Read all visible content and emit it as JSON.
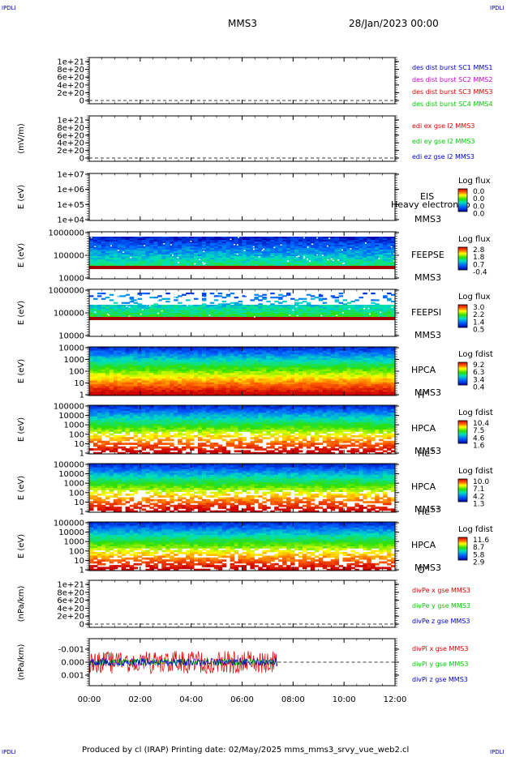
{
  "header": {
    "spacecraft": "MMS3",
    "date": "28/Jan/2023 00:00",
    "corner_labels": [
      "IPDLI",
      "IPDLI",
      "IPDLI",
      "IPDLI"
    ]
  },
  "footer": {
    "text": "Produced by cl (IRAP)   Printing date: 02/May/2025   mms_mms3_srvy_vue_web2.cl"
  },
  "colors": {
    "c1": "#0000cc",
    "c2": "#cc00cc",
    "c3": "#dd0000",
    "c4": "#00cc00",
    "ex": "#dd0000",
    "ey": "#00cc00",
    "ez": "#0000cc"
  },
  "chart_data": [
    {
      "id": "p1",
      "type": "line",
      "ylabel": "",
      "yticks": [
        "1e+21",
        "8e+20",
        "6e+20",
        "4e+20",
        "2e+20",
        "0"
      ],
      "ylim": [
        0,
        1e+21
      ],
      "legend": [
        {
          "label": "des dist burst SC1 MMS1",
          "color": "#0000cc"
        },
        {
          "label": "des dist burst SC2 MMS2",
          "color": "#cc00cc"
        },
        {
          "label": "des dist burst SC3 MMS3",
          "color": "#dd0000"
        },
        {
          "label": "des dist burst SC4 MMS4",
          "color": "#00cc00"
        }
      ]
    },
    {
      "id": "p2",
      "type": "line",
      "ylabel": "(mV/m)",
      "yticks": [
        "1e+21",
        "8e+20",
        "6e+20",
        "4e+20",
        "2e+20",
        "0"
      ],
      "ylim": [
        0,
        1e+21
      ],
      "legend": [
        {
          "label": "edi ex gse l2 MMS3",
          "color": "#dd0000"
        },
        {
          "label": "edi ey gse l2 MMS3",
          "color": "#00cc00"
        },
        {
          "label": "edi ez gse l2 MMS3",
          "color": "#0000cc"
        }
      ]
    },
    {
      "id": "p3",
      "type": "heatmap",
      "ylabel": "E (eV)",
      "yticks": [
        "1e+07",
        "1e+06",
        "1e+05",
        "1e+04"
      ],
      "instrument": "EIS",
      "spacecraft": "MMS3",
      "overlay": "Heavy electron to",
      "colorbar": {
        "title": "Log flux",
        "ticks": [
          "0.0",
          "0.0",
          "0.0",
          "0.0"
        ]
      }
    },
    {
      "id": "p4",
      "type": "heatmap",
      "ylabel": "E (eV)",
      "yticks": [
        "1000000",
        "100000",
        "10000"
      ],
      "instrument": "FEEPSE",
      "spacecraft": "MMS3",
      "colorbar": {
        "title": "Log flux",
        "ticks": [
          "2.8",
          "1.8",
          "0.7",
          "-0.4"
        ]
      }
    },
    {
      "id": "p5",
      "type": "heatmap",
      "ylabel": "E (eV)",
      "yticks": [
        "1000000",
        "100000",
        "10000"
      ],
      "instrument": "FEEPSI",
      "spacecraft": "MMS3",
      "colorbar": {
        "title": "Log flux",
        "ticks": [
          "3.0",
          "2.2",
          "1.4",
          "0.5"
        ]
      }
    },
    {
      "id": "p6",
      "type": "heatmap",
      "ylabel": "E (eV)",
      "yticks": [
        "10000",
        "1000",
        "100",
        "10",
        "1"
      ],
      "instrument": "HPCA",
      "spacecraft": "MMS3",
      "species": "H",
      "charge": "+",
      "colorbar": {
        "title": "Log fdist",
        "ticks": [
          "9.2",
          "6.3",
          "3.4",
          "0.4"
        ]
      }
    },
    {
      "id": "p7",
      "type": "heatmap",
      "ylabel": "E (eV)",
      "yticks": [
        "100000",
        "10000",
        "1000",
        "100",
        "10",
        "1"
      ],
      "instrument": "HPCA",
      "spacecraft": "MMS3",
      "species": "He",
      "charge": "+",
      "colorbar": {
        "title": "Log fdist",
        "ticks": [
          "10.4",
          "7.5",
          "4.6",
          "1.6"
        ]
      }
    },
    {
      "id": "p8",
      "type": "heatmap",
      "ylabel": "E (eV)",
      "yticks": [
        "100000",
        "10000",
        "1000",
        "100",
        "10",
        "1"
      ],
      "instrument": "HPCA",
      "spacecraft": "MMS3",
      "species": "He",
      "charge": "++",
      "colorbar": {
        "title": "Log fdist",
        "ticks": [
          "10.0",
          "7.1",
          "4.2",
          "1.3"
        ]
      }
    },
    {
      "id": "p9",
      "type": "heatmap",
      "ylabel": "E (eV)",
      "yticks": [
        "100000",
        "10000",
        "1000",
        "100",
        "10",
        "1"
      ],
      "instrument": "HPCA",
      "spacecraft": "MMS3",
      "species": "O",
      "charge": "+",
      "colorbar": {
        "title": "Log fdist",
        "ticks": [
          "11.6",
          "8.7",
          "5.8",
          "2.9"
        ]
      }
    },
    {
      "id": "p10",
      "type": "line",
      "ylabel": "(nPa/km)",
      "yticks": [
        "1e+21",
        "8e+20",
        "6e+20",
        "4e+20",
        "2e+20",
        "0"
      ],
      "ylim": [
        0,
        1e+21
      ],
      "legend": [
        {
          "label": "divPe x gse MMS3",
          "color": "#dd0000"
        },
        {
          "label": "divPe y gse MMS3",
          "color": "#00cc00"
        },
        {
          "label": "divPe z gse MMS3",
          "color": "#0000cc"
        }
      ]
    },
    {
      "id": "p11",
      "type": "line",
      "ylabel": "(nPa/km)",
      "yticks": [
        "0.001",
        "0.000",
        "-0.001"
      ],
      "ylim": [
        -0.0015,
        0.0015
      ],
      "data_until_hour": 7.4,
      "legend": [
        {
          "label": "divPi x gse MMS3",
          "color": "#dd0000"
        },
        {
          "label": "divPi y gse MMS3",
          "color": "#00cc00"
        },
        {
          "label": "divPi z gse MMS3",
          "color": "#0000cc"
        }
      ]
    }
  ],
  "x_axis": {
    "ticks": [
      "00:00",
      "02:00",
      "04:00",
      "06:00",
      "08:00",
      "10:00",
      "12:00"
    ],
    "xlim_hours": [
      0,
      12
    ]
  }
}
